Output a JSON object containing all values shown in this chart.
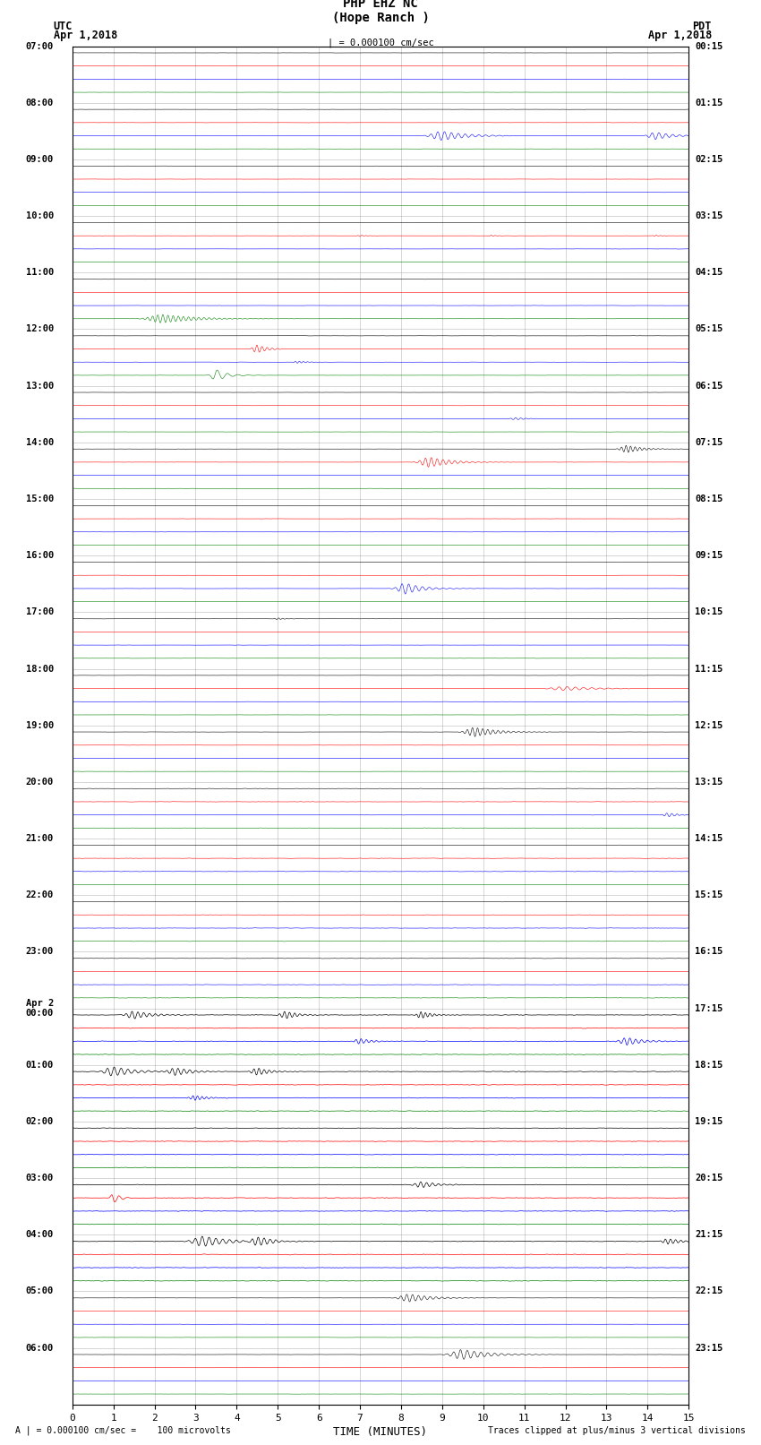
{
  "title_line1": "PHP EHZ NC",
  "title_line2": "(Hope Ranch )",
  "title_scale": "| = 0.000100 cm/sec",
  "label_utc": "UTC",
  "label_pdt": "PDT",
  "label_date_left": "Apr 1,2018",
  "label_date_right": "Apr 1,2018",
  "xlabel": "TIME (MINUTES)",
  "footer_left": "A | = 0.000100 cm/sec =    100 microvolts",
  "footer_right": "Traces clipped at plus/minus 3 vertical divisions",
  "xmin": 0,
  "xmax": 15,
  "xticks": [
    0,
    1,
    2,
    3,
    4,
    5,
    6,
    7,
    8,
    9,
    10,
    11,
    12,
    13,
    14,
    15
  ],
  "bg_color": "#ffffff",
  "row_colors_cycle": [
    "black",
    "red",
    "blue",
    "green"
  ],
  "utc_labels": [
    "07:00",
    "08:00",
    "09:00",
    "10:00",
    "11:00",
    "12:00",
    "13:00",
    "14:00",
    "15:00",
    "16:00",
    "17:00",
    "18:00",
    "19:00",
    "20:00",
    "21:00",
    "22:00",
    "23:00",
    "Apr 2\n00:00",
    "01:00",
    "02:00",
    "03:00",
    "04:00",
    "05:00",
    "06:00"
  ],
  "pdt_labels": [
    "00:15",
    "01:15",
    "02:15",
    "03:15",
    "04:15",
    "05:15",
    "06:15",
    "07:15",
    "08:15",
    "09:15",
    "10:15",
    "11:15",
    "12:15",
    "13:15",
    "14:15",
    "15:15",
    "16:15",
    "17:15",
    "18:15",
    "19:15",
    "20:15",
    "21:15",
    "22:15",
    "23:15"
  ],
  "n_hours": 24,
  "traces_per_hour": 4,
  "grid_color": "#aaaaaa"
}
